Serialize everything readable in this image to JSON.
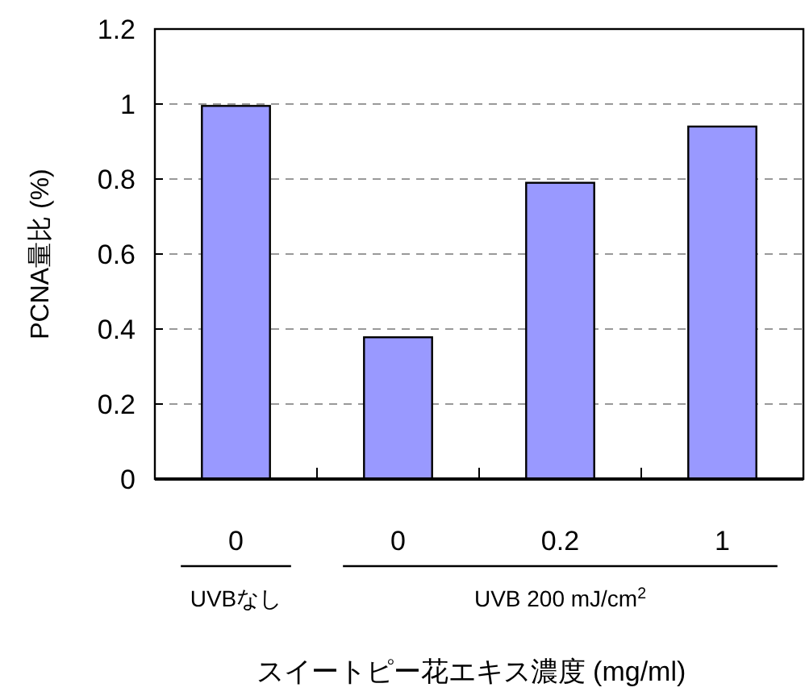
{
  "chart_data": {
    "type": "bar",
    "categories": [
      "0",
      "0",
      "0.2",
      "1"
    ],
    "values": [
      0.995,
      0.378,
      0.79,
      0.94
    ],
    "color": "#9999ff",
    "ylabel": "PCNA量比 (%)",
    "xlabel": "スイートピー花エキス濃度 (mg/ml)",
    "annotations": [
      "UVBなし",
      "UVB 200 mJ/cm$^{2}$"
    ],
    "ylim": [
      0,
      1.2
    ],
    "yticks": [
      0,
      0.2,
      0.4,
      0.6,
      0.8,
      1,
      1.2
    ],
    "grid": "y"
  }
}
